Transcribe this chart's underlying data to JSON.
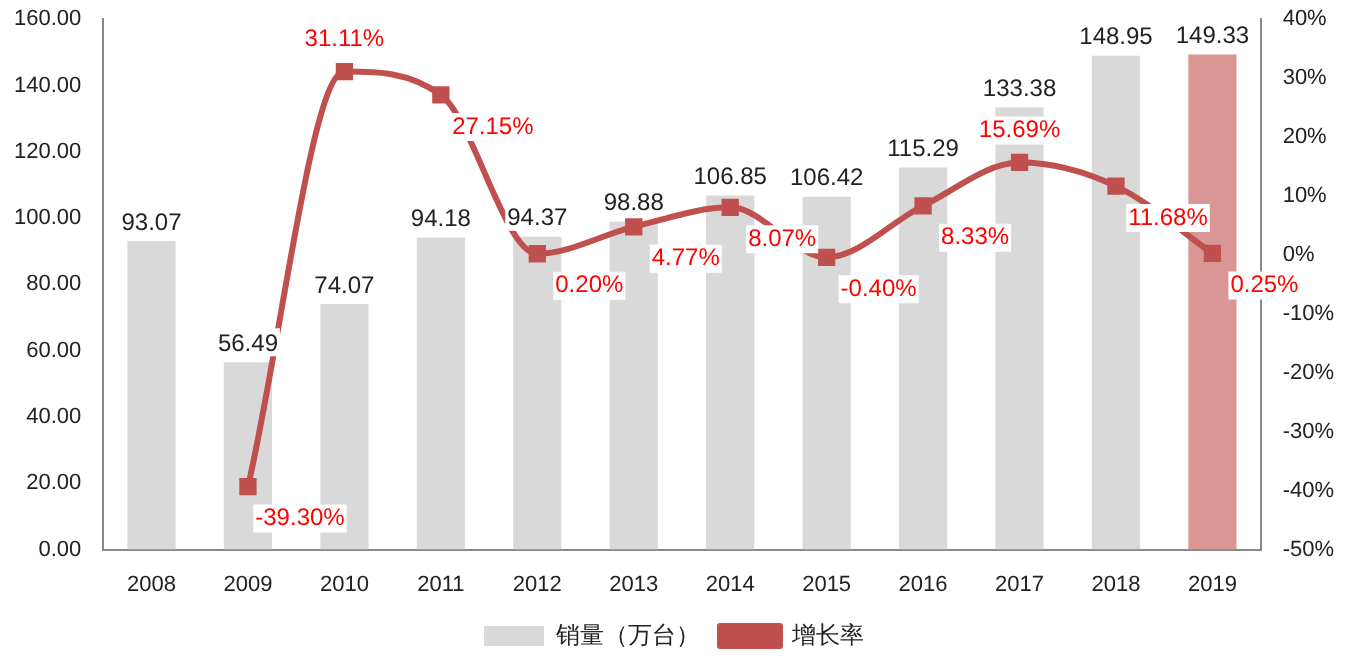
{
  "chart_data": {
    "type": "bar",
    "categories": [
      "2008",
      "2009",
      "2010",
      "2011",
      "2012",
      "2013",
      "2014",
      "2015",
      "2016",
      "2017",
      "2018",
      "2019"
    ],
    "series": [
      {
        "name": "销量（万台）",
        "colors": [
          "#d9d9d9",
          "#d9d9d9",
          "#d9d9d9",
          "#d9d9d9",
          "#d9d9d9",
          "#d9d9d9",
          "#d9d9d9",
          "#d9d9d9",
          "#d9d9d9",
          "#d9d9d9",
          "#d9d9d9",
          "#da9694"
        ],
        "values": [
          93.07,
          56.49,
          74.07,
          94.18,
          94.37,
          98.88,
          106.85,
          106.42,
          115.29,
          133.38,
          148.95,
          149.33
        ],
        "value_labels": [
          "93.07",
          "56.49",
          "74.07",
          "94.18",
          "94.37",
          "98.88",
          "106.85",
          "106.42",
          "115.29",
          "133.38",
          "148.95",
          "149.33"
        ]
      },
      {
        "name": "增长率",
        "type": "line",
        "axis": "y2",
        "color": "#c0504d",
        "marker": "square",
        "values": [
          null,
          -39.3,
          31.11,
          27.15,
          0.2,
          4.77,
          8.07,
          -0.4,
          8.33,
          15.69,
          11.68,
          0.25
        ],
        "value_labels": [
          null,
          "-39.30%",
          "31.11%",
          "27.15%",
          "0.20%",
          "4.77%",
          "8.07%",
          "-0.40%",
          "8.33%",
          "15.69%",
          "11.68%",
          "0.25%"
        ]
      }
    ],
    "ylim": [
      0,
      160
    ],
    "yticks": [
      {
        "value": 0,
        "label": "0.00"
      },
      {
        "value": 20,
        "label": "20.00"
      },
      {
        "value": 40,
        "label": "40.00"
      },
      {
        "value": 60,
        "label": "60.00"
      },
      {
        "value": 80,
        "label": "80.00"
      },
      {
        "value": 100,
        "label": "100.00"
      },
      {
        "value": 120,
        "label": "120.00"
      },
      {
        "value": 140,
        "label": "140.00"
      },
      {
        "value": 160,
        "label": "160.00"
      }
    ],
    "y2lim": [
      -50,
      40
    ],
    "y2ticks": [
      {
        "value": -50,
        "label": "-50%"
      },
      {
        "value": -40,
        "label": "-40%"
      },
      {
        "value": -30,
        "label": "-30%"
      },
      {
        "value": -20,
        "label": "-20%"
      },
      {
        "value": -10,
        "label": "-10%"
      },
      {
        "value": 0,
        "label": "0%"
      },
      {
        "value": 10,
        "label": "10%"
      },
      {
        "value": 20,
        "label": "20%"
      },
      {
        "value": 30,
        "label": "30%"
      },
      {
        "value": 40,
        "label": "40%"
      }
    ],
    "grid": false,
    "legend": "bottom"
  }
}
